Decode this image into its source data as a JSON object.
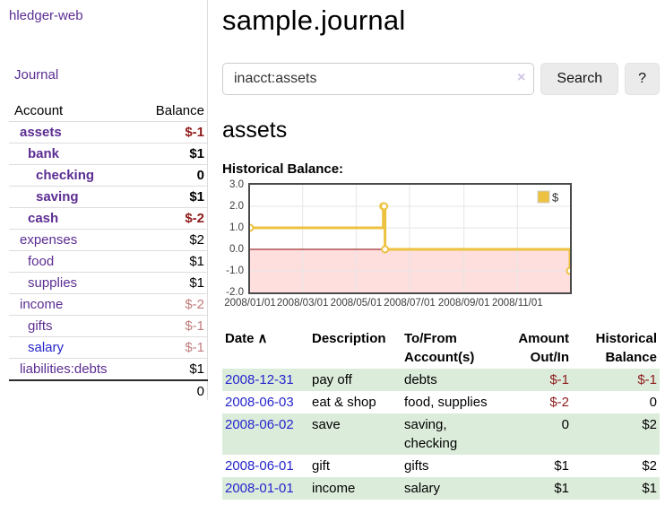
{
  "app": {
    "brand": "hledger-web",
    "nav_journal": "Journal"
  },
  "colors": {
    "accent_purple": "#5b2d92",
    "link_blue": "#2525cc",
    "negative_strong": "#8f1a1a",
    "negative_soft": "#c17d7d",
    "row_green": "#dcecdb"
  },
  "sidebar": {
    "account_header": "Account",
    "balance_header": "Balance",
    "rows": [
      {
        "name": "assets",
        "balance": "$-1",
        "indent": 1,
        "bold": true,
        "balance_class": "neg-strong"
      },
      {
        "name": "bank",
        "balance": "$1",
        "indent": 2,
        "bold": true,
        "balance_class": ""
      },
      {
        "name": "checking",
        "balance": "0",
        "indent": 3,
        "bold": true,
        "balance_class": ""
      },
      {
        "name": "saving",
        "balance": "$1",
        "indent": 3,
        "bold": true,
        "balance_class": ""
      },
      {
        "name": "cash",
        "balance": "$-2",
        "indent": 2,
        "bold": true,
        "balance_class": "neg-strong"
      },
      {
        "name": "expenses",
        "balance": "$2",
        "indent": 1,
        "bold": false,
        "balance_class": ""
      },
      {
        "name": "food",
        "balance": "$1",
        "indent": 2,
        "bold": false,
        "balance_class": ""
      },
      {
        "name": "supplies",
        "balance": "$1",
        "indent": 2,
        "bold": false,
        "balance_class": ""
      },
      {
        "name": "income",
        "balance": "$-2",
        "indent": 1,
        "bold": false,
        "balance_class": "neg-soft"
      },
      {
        "name": "gifts",
        "balance": "$-1",
        "indent": 2,
        "bold": false,
        "balance_class": "neg-soft"
      },
      {
        "name": "salary",
        "balance": "$-1",
        "indent": 2,
        "bold": false,
        "balance_class": "neg-soft",
        "link_class": "blue"
      },
      {
        "name": "liabilities:debts",
        "balance": "$1",
        "indent": 1,
        "bold": false,
        "balance_class": ""
      }
    ],
    "total": "0"
  },
  "header": {
    "title": "sample.journal"
  },
  "search": {
    "value": "inacct:assets",
    "clear_icon": "×",
    "button_label": "Search",
    "help_label": "?"
  },
  "account_page": {
    "heading": "assets",
    "chart_label": "Historical Balance:"
  },
  "chart_data": {
    "type": "line",
    "title": "Historical Balance:",
    "step": true,
    "marker": "hollow-circle",
    "legend_position": "top-right",
    "grid": true,
    "series": [
      {
        "name": "$",
        "color": "#edc240",
        "points": [
          [
            "2008-01-01",
            1
          ],
          [
            "2008-06-01",
            2
          ],
          [
            "2008-06-02",
            2
          ],
          [
            "2008-06-03",
            0
          ],
          [
            "2008-12-31",
            -1
          ]
        ]
      }
    ],
    "x_range": [
      "2008-01-01",
      "2008-12-31"
    ],
    "ylim": [
      -2,
      3
    ],
    "ytick_labels": [
      "3.0",
      "2.0",
      "1.0",
      "0.0",
      "-1.0",
      "-2.0"
    ],
    "yticks": [
      3,
      2,
      1,
      0,
      -1,
      -2
    ],
    "xticks": [
      {
        "label": "2008/01/01",
        "date": "2008-01-01"
      },
      {
        "label": "2008/03/01",
        "date": "2008-03-01"
      },
      {
        "label": "2008/05/01",
        "date": "2008-05-01"
      },
      {
        "label": "2008/07/01",
        "date": "2008-07-01"
      },
      {
        "label": "2008/09/01",
        "date": "2008-09-01"
      },
      {
        "label": "2008/11/01",
        "date": "2008-11-01"
      }
    ],
    "negative_region_fill": "#ffdede",
    "zero_line_color": "#8b0000",
    "grid_color": "#e6e6e6",
    "border_color": "#4a4a4a"
  },
  "register": {
    "sort_icon": "∧",
    "columns": [
      {
        "line1": "Date",
        "line2": ""
      },
      {
        "line1": "Description",
        "line2": ""
      },
      {
        "line1": "To/From",
        "line2": "Account(s)"
      },
      {
        "line1": "Amount",
        "line2": "Out/In"
      },
      {
        "line1": "Historical",
        "line2": "Balance"
      }
    ],
    "rows": [
      {
        "date": "2008-12-31",
        "description": "pay off",
        "accounts": "debts",
        "amount": "$-1",
        "balance": "$-1",
        "amount_class": "neg-strong",
        "balance_class": "neg-strong"
      },
      {
        "date": "2008-06-03",
        "description": "eat & shop",
        "accounts": "food, supplies",
        "amount": "$-2",
        "balance": "0",
        "amount_class": "neg-strong",
        "balance_class": ""
      },
      {
        "date": "2008-06-02",
        "description": "save",
        "accounts": "saving, checking",
        "amount": "0",
        "balance": "$2",
        "amount_class": "",
        "balance_class": ""
      },
      {
        "date": "2008-06-01",
        "description": "gift",
        "accounts": "gifts",
        "amount": "$1",
        "balance": "$2",
        "amount_class": "",
        "balance_class": ""
      },
      {
        "date": "2008-01-01",
        "description": "income",
        "accounts": "salary",
        "amount": "$1",
        "balance": "$1",
        "amount_class": "",
        "balance_class": ""
      }
    ]
  }
}
